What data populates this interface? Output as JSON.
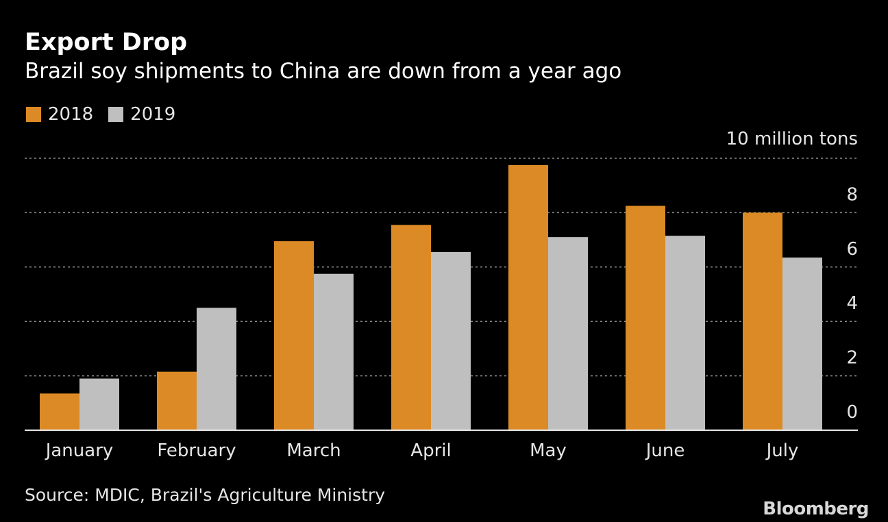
{
  "header": {
    "title": "Export Drop",
    "subtitle": "Brazil soy shipments to China are down from a year ago"
  },
  "footer": {
    "source": "Source: MDIC, Brazil's Agriculture Ministry",
    "logo": "Bloomberg"
  },
  "chart_data": {
    "type": "bar",
    "title": "Export Drop",
    "subtitle": "Brazil soy shipments to China are down from a year ago",
    "unit_label": "10 million tons",
    "categories": [
      "January",
      "February",
      "March",
      "April",
      "May",
      "June",
      "July"
    ],
    "series": [
      {
        "name": "2018",
        "color": "#DB8A26",
        "values": [
          1.35,
          2.15,
          6.95,
          7.55,
          9.75,
          8.25,
          8.0
        ]
      },
      {
        "name": "2019",
        "color": "#BFBFBF",
        "values": [
          1.9,
          4.5,
          5.75,
          6.55,
          7.1,
          7.15,
          6.35
        ]
      }
    ],
    "yticks": [
      "0",
      "2",
      "4",
      "6",
      "8"
    ],
    "ylim": [
      0,
      10
    ],
    "grid": true,
    "legend": "top-left",
    "xlabel": "",
    "ylabel": ""
  }
}
